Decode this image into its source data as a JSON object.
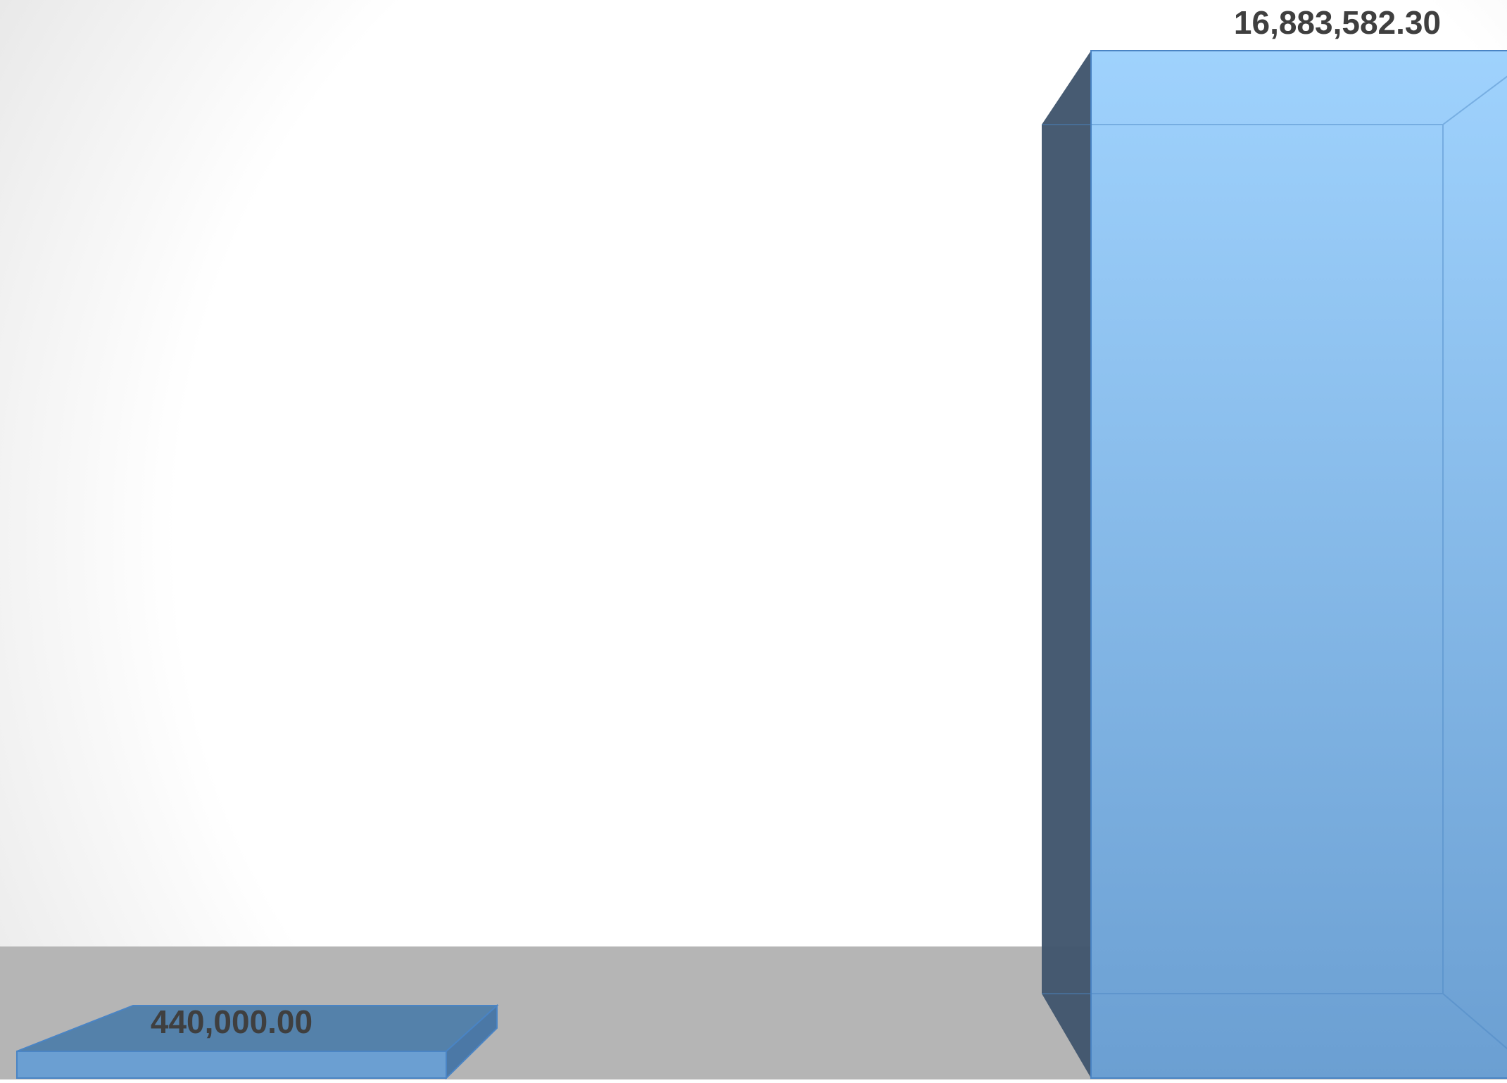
{
  "chart_data": {
    "type": "bar",
    "style": "3d-column",
    "categories": [
      "",
      ""
    ],
    "series": [
      {
        "values": [
          440000.0,
          16883582.3
        ],
        "data_labels": [
          "440,000.00",
          "16,883,582.30"
        ]
      }
    ],
    "title": "",
    "xlabel": "",
    "ylabel": "",
    "ylim": [
      0,
      16883582.3
    ],
    "grid": false,
    "legend": "none",
    "colors": {
      "bar_front_top": "#9fd2fd",
      "bar_front_bottom": "#6ba0d3",
      "bar_side": "#41566d",
      "bar_stroke": "#4a84c4",
      "floor": "#b5b5b5",
      "back_wall_edge": "#ececec",
      "label": "#3f3f3f"
    }
  }
}
